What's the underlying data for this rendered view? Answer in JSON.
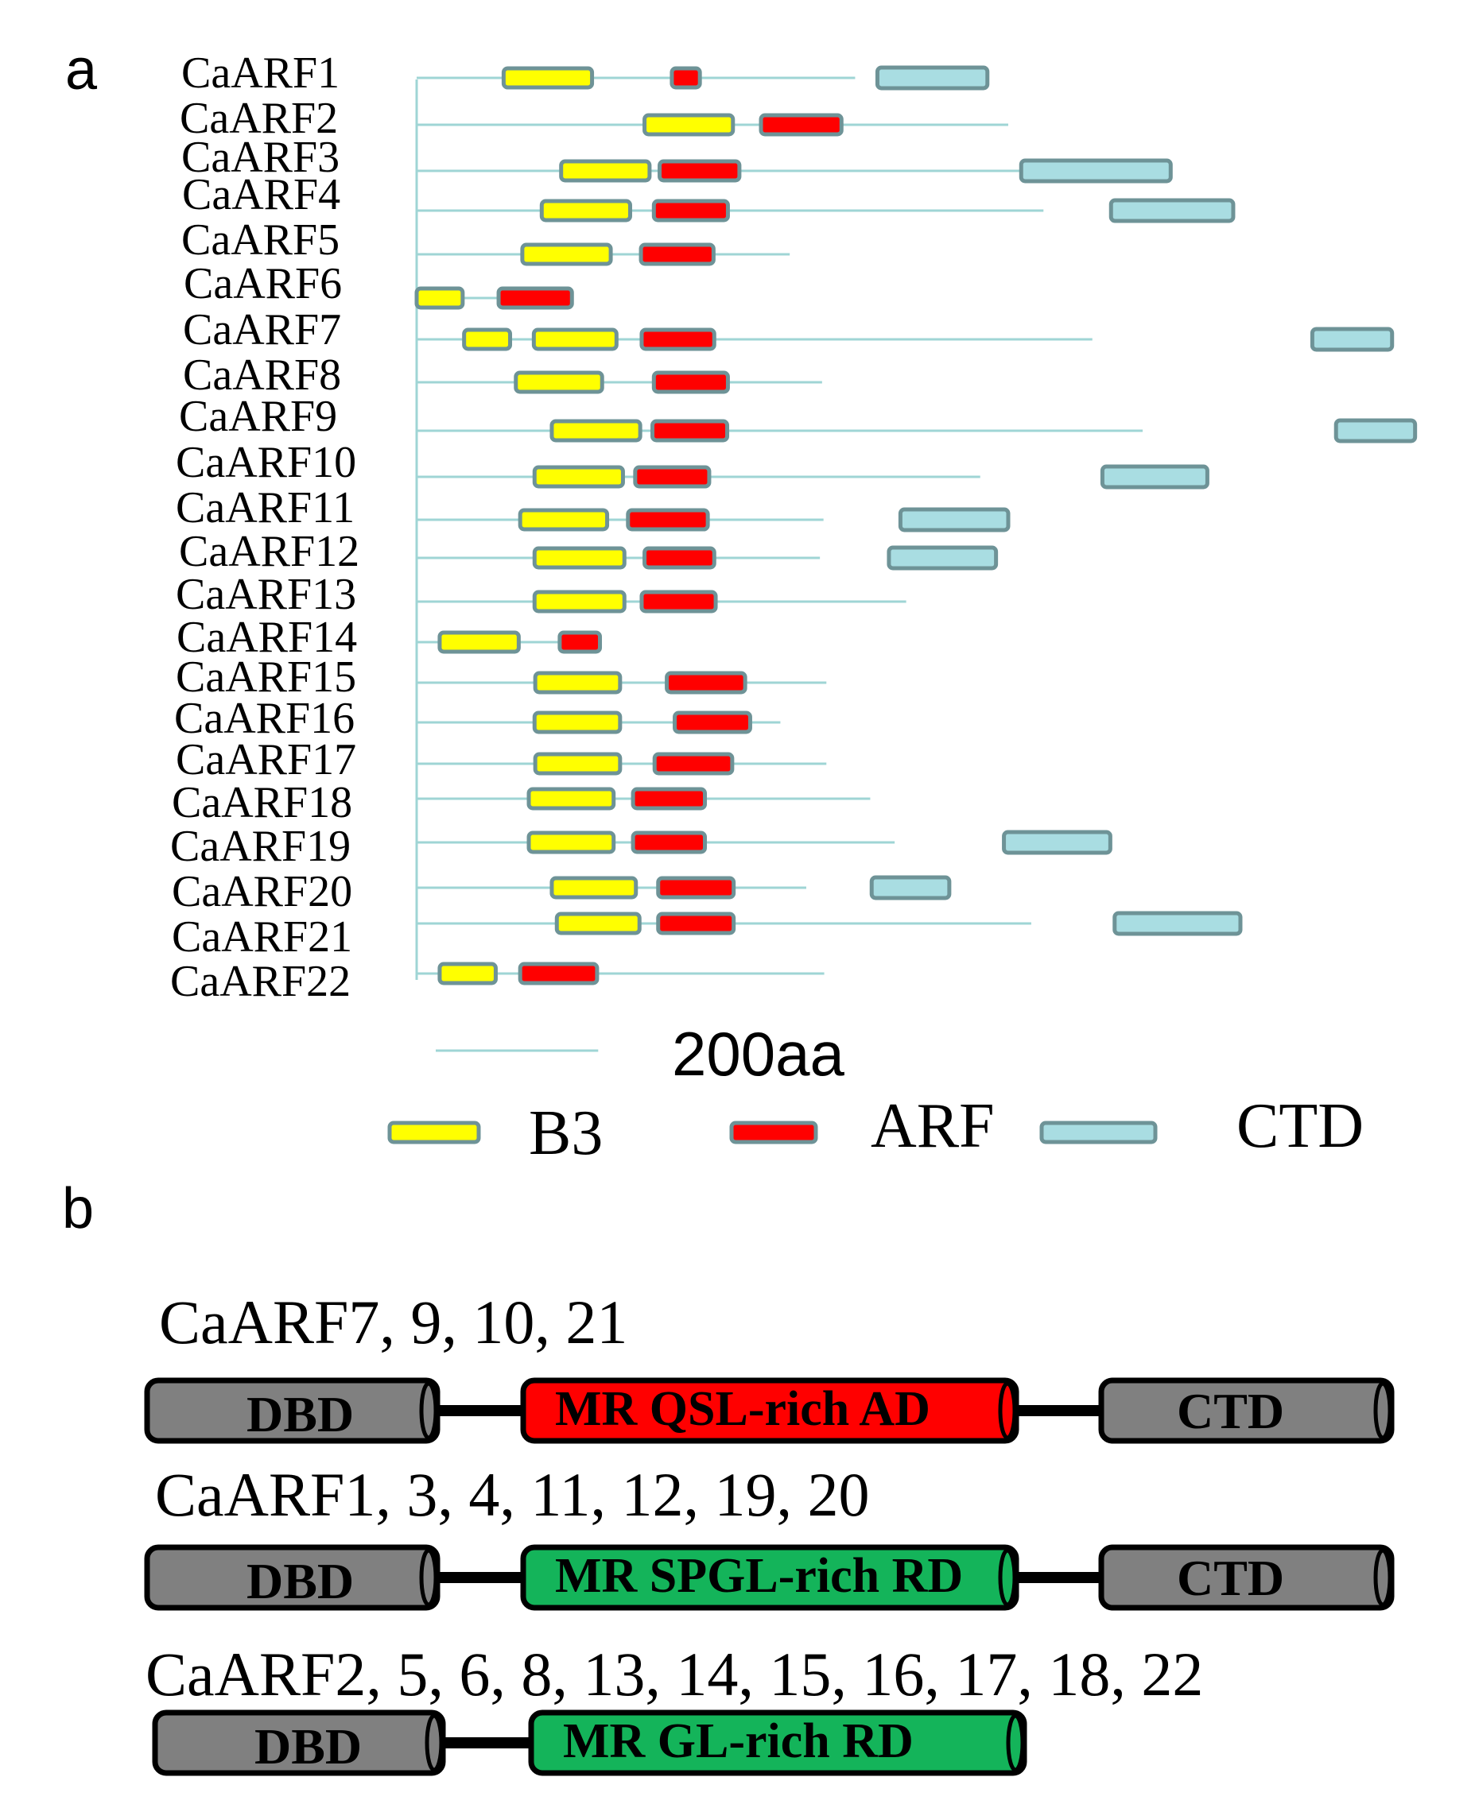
{
  "panel_a": {
    "label": "a",
    "proteins": [
      {
        "name": "CaARF1",
        "length": 610,
        "domains": [
          [
            "B3",
            121,
            244
          ],
          [
            "ARF",
            355,
            394
          ],
          [
            "CTD",
            641,
            794
          ]
        ]
      },
      {
        "name": "CaARF2",
        "length": 823,
        "domains": [
          [
            "B3",
            317,
            440
          ],
          [
            "ARF",
            479,
            591
          ]
        ]
      },
      {
        "name": "CaARF3",
        "length": 860,
        "domains": [
          [
            "B3",
            201,
            324
          ],
          [
            "ARF",
            338,
            449
          ],
          [
            "CTD",
            841,
            1049
          ]
        ]
      },
      {
        "name": "CaARF4",
        "length": 872,
        "domains": [
          [
            "B3",
            174,
            297
          ],
          [
            "ARF",
            330,
            433
          ],
          [
            "CTD",
            966,
            1136
          ]
        ]
      },
      {
        "name": "CaARF5",
        "length": 519,
        "domains": [
          [
            "B3",
            147,
            270
          ],
          [
            "ARF",
            312,
            413
          ]
        ]
      },
      {
        "name": "CaARF6",
        "length": 190,
        "domains": [
          [
            "B3",
            0,
            64
          ],
          [
            "ARF",
            114,
            216
          ]
        ]
      },
      {
        "name": "CaARF7",
        "length": 940,
        "domains": [
          [
            "B3",
            66,
            130
          ],
          [
            "B3",
            163,
            278
          ],
          [
            "ARF",
            313,
            414
          ],
          [
            "CTD",
            1246,
            1357
          ]
        ]
      },
      {
        "name": "CaARF8",
        "length": 564,
        "domains": [
          [
            "B3",
            138,
            258
          ],
          [
            "ARF",
            330,
            433
          ]
        ]
      },
      {
        "name": "CaARF9",
        "length": 1010,
        "domains": [
          [
            "B3",
            188,
            311
          ],
          [
            "ARF",
            328,
            432
          ],
          [
            "CTD",
            1279,
            1389
          ]
        ]
      },
      {
        "name": "CaARF10",
        "length": 784,
        "domains": [
          [
            "B3",
            164,
            287
          ],
          [
            "ARF",
            304,
            407
          ],
          [
            "CTD",
            954,
            1100
          ]
        ]
      },
      {
        "name": "CaARF11",
        "length": 566,
        "domains": [
          [
            "B3",
            144,
            265
          ],
          [
            "ARF",
            294,
            405
          ],
          [
            "CTD",
            673,
            823
          ]
        ]
      },
      {
        "name": "CaARF12",
        "length": 561,
        "domains": [
          [
            "B3",
            164,
            289
          ],
          [
            "ARF",
            317,
            414
          ],
          [
            "CTD",
            657,
            806
          ]
        ]
      },
      {
        "name": "CaARF13",
        "length": 681,
        "domains": [
          [
            "B3",
            164,
            289
          ],
          [
            "ARF",
            313,
            416
          ]
        ]
      },
      {
        "name": "CaARF14",
        "length": 202,
        "domains": [
          [
            "B3",
            32,
            142
          ],
          [
            "ARF",
            199,
            255
          ]
        ]
      },
      {
        "name": "CaARF15",
        "length": 570,
        "domains": [
          [
            "B3",
            165,
            283
          ],
          [
            "ARF",
            348,
            457
          ]
        ]
      },
      {
        "name": "CaARF16",
        "length": 506,
        "domains": [
          [
            "B3",
            164,
            283
          ],
          [
            "ARF",
            359,
            464
          ]
        ]
      },
      {
        "name": "CaARF17",
        "length": 570,
        "domains": [
          [
            "B3",
            165,
            283
          ],
          [
            "ARF",
            331,
            439
          ]
        ]
      },
      {
        "name": "CaARF18",
        "length": 631,
        "domains": [
          [
            "B3",
            156,
            274
          ],
          [
            "ARF",
            301,
            401
          ]
        ]
      },
      {
        "name": "CaARF19",
        "length": 665,
        "domains": [
          [
            "B3",
            156,
            274
          ],
          [
            "ARF",
            301,
            401
          ],
          [
            "CTD",
            817,
            965
          ]
        ]
      },
      {
        "name": "CaARF20",
        "length": 542,
        "domains": [
          [
            "B3",
            188,
            305
          ],
          [
            "ARF",
            336,
            441
          ],
          [
            "CTD",
            633,
            741
          ]
        ]
      },
      {
        "name": "CaARF21",
        "length": 855,
        "domains": [
          [
            "B3",
            195,
            310
          ],
          [
            "ARF",
            336,
            441
          ],
          [
            "CTD",
            971,
            1146
          ]
        ]
      },
      {
        "name": "CaARF22",
        "length": 567,
        "domains": [
          [
            "B3",
            32,
            110
          ],
          [
            "ARF",
            144,
            251
          ]
        ]
      }
    ],
    "scale_label": "200aa",
    "scale_length": 200,
    "legend": [
      {
        "label": "B3",
        "type": "B3"
      },
      {
        "label": "ARF",
        "type": "ARF"
      },
      {
        "label": "CTD",
        "type": "CTD"
      }
    ],
    "colors": {
      "B3": "#ffff00",
      "ARF": "#ff0000",
      "CTD": "#a9dde2",
      "border": "#6e9397",
      "backbone": "#9fd5d5"
    }
  },
  "panel_b": {
    "label": "b",
    "groups": [
      {
        "title": "CaARF7, 9, 10, 21",
        "segments": [
          "DBD",
          "MR QSL-rich AD",
          "CTD"
        ],
        "mr_color": "#ff0000"
      },
      {
        "title": "CaARF1, 3, 4, 11, 12, 19, 20",
        "segments": [
          "DBD",
          "MR SPGL-rich RD",
          "CTD"
        ],
        "mr_color": "#14b45a"
      },
      {
        "title": "CaARF2, 5, 6, 8, 13, 14, 15, 16, 17, 18, 22",
        "segments": [
          "DBD",
          "MR GL-rich RD"
        ],
        "mr_color": "#14b45a"
      }
    ],
    "colors": {
      "DBD": "#808080",
      "CTD": "#808080"
    }
  }
}
